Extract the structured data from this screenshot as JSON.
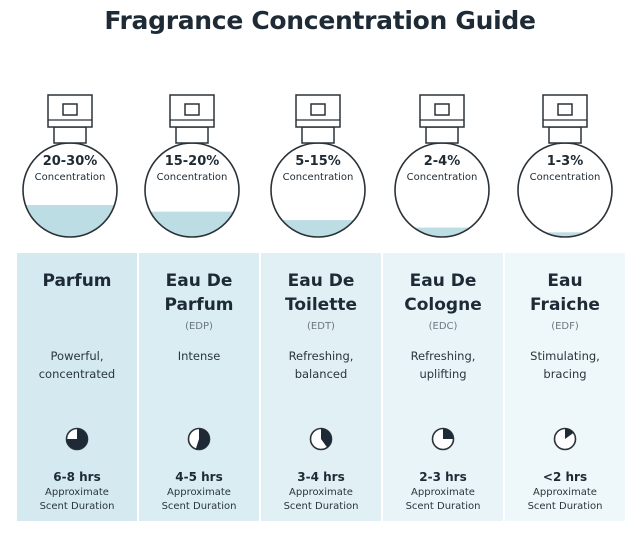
{
  "title": "Fragrance Concentration Guide",
  "colors": {
    "liquid": "#bddde4",
    "outline": "#2b3238",
    "panel_backgrounds": [
      "#d4e9f0",
      "#daedf2",
      "#e1f0f4",
      "#e8f4f7",
      "#eef7f9"
    ]
  },
  "icons": {
    "bottle": "perfume-bottle-icon",
    "clock": "clock-icon"
  },
  "fragrances": [
    {
      "concentration_range": "20-30%",
      "concentration_label": "Concentration",
      "name": "Parfum",
      "abbr": "",
      "description": "Powerful,\nconcentrated",
      "duration": "6-8 hrs",
      "duration_label": "Approximate\nScent Duration",
      "fill_level": 0.34,
      "clock_fraction": 0.75
    },
    {
      "concentration_range": "15-20%",
      "concentration_label": "Concentration",
      "name": "Eau De\nParfum",
      "abbr": "(EDP)",
      "description": "Intense",
      "duration": "4-5 hrs",
      "duration_label": "Approximate\nScent Duration",
      "fill_level": 0.27,
      "clock_fraction": 0.55
    },
    {
      "concentration_range": "5-15%",
      "concentration_label": "Concentration",
      "name": "Eau De\nToilette",
      "abbr": "(EDT)",
      "description": "Refreshing,\nbalanced",
      "duration": "3-4 hrs",
      "duration_label": "Approximate\nScent Duration",
      "fill_level": 0.18,
      "clock_fraction": 0.4
    },
    {
      "concentration_range": "2-4%",
      "concentration_label": "Concentration",
      "name": "Eau De\nCologne",
      "abbr": "(EDC)",
      "description": "Refreshing,\nuplifting",
      "duration": "2-3 hrs",
      "duration_label": "Approximate\nScent Duration",
      "fill_level": 0.1,
      "clock_fraction": 0.25
    },
    {
      "concentration_range": "1-3%",
      "concentration_label": "Concentration",
      "name": "Eau\nFraiche",
      "abbr": "(EDF)",
      "description": "Stimulating,\nbracing",
      "duration": "<2 hrs",
      "duration_label": "Approximate\nScent Duration",
      "fill_level": 0.05,
      "clock_fraction": 0.15
    }
  ]
}
